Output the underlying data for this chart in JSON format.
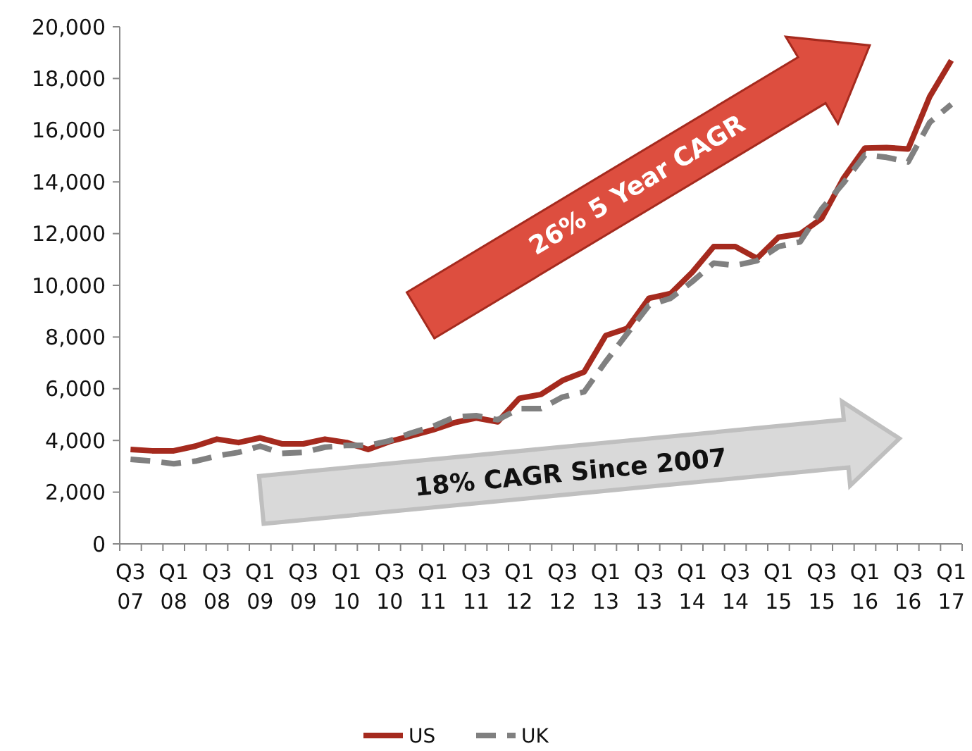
{
  "chart_data": {
    "type": "line",
    "categories": [
      "Q3 07",
      null,
      "Q1 08",
      null,
      "Q3 08",
      null,
      "Q1 09",
      null,
      "Q3 09",
      null,
      "Q1 10",
      null,
      "Q3 10",
      null,
      "Q1 11",
      null,
      "Q3 11",
      null,
      "Q1 12",
      null,
      "Q3 12",
      null,
      "Q1 13",
      null,
      "Q3 13",
      null,
      "Q1 14",
      null,
      "Q3 14",
      null,
      "Q1 15",
      null,
      "Q3 15",
      null,
      "Q1 16",
      null,
      "Q3 16",
      null,
      "Q1 17"
    ],
    "series": [
      {
        "name": "US",
        "color": "#a52a1e",
        "line_style": "solid",
        "values": [
          3650,
          3600,
          3600,
          3780,
          4050,
          3920,
          4100,
          3870,
          3870,
          4050,
          3920,
          3650,
          3960,
          4180,
          4410,
          4690,
          4870,
          4720,
          5630,
          5780,
          6320,
          6650,
          8060,
          8340,
          9500,
          9680,
          10500,
          11500,
          11500,
          11040,
          11860,
          11990,
          12590,
          14130,
          15310,
          15330,
          15270,
          17300,
          18700
        ]
      },
      {
        "name": "UK",
        "color": "#808080",
        "line_style": "dashed",
        "values": [
          3270,
          3200,
          3100,
          3200,
          3400,
          3540,
          3780,
          3500,
          3540,
          3740,
          3810,
          3810,
          3990,
          4290,
          4540,
          4900,
          4960,
          4800,
          5230,
          5230,
          5680,
          5880,
          7050,
          8140,
          9220,
          9500,
          10140,
          10860,
          10770,
          10950,
          11500,
          11680,
          12960,
          13950,
          15040,
          14950,
          14770,
          16300,
          17000
        ]
      }
    ],
    "ylim": [
      0,
      20000
    ],
    "yticks": [
      {
        "value": 0,
        "label": "0"
      },
      {
        "value": 2000,
        "label": "2,000"
      },
      {
        "value": 4000,
        "label": "4,000"
      },
      {
        "value": 6000,
        "label": "6,000"
      },
      {
        "value": 8000,
        "label": "8,000"
      },
      {
        "value": 10000,
        "label": "10,000"
      },
      {
        "value": 12000,
        "label": "12,000"
      },
      {
        "value": 14000,
        "label": "14,000"
      },
      {
        "value": 16000,
        "label": "16,000"
      },
      {
        "value": 18000,
        "label": "18,000"
      },
      {
        "value": 20000,
        "label": "20,000"
      }
    ],
    "grid": false,
    "legend": "bottom",
    "annotations": [
      "26% 5 Year CAGR",
      "18% CAGR Since 2007"
    ]
  }
}
